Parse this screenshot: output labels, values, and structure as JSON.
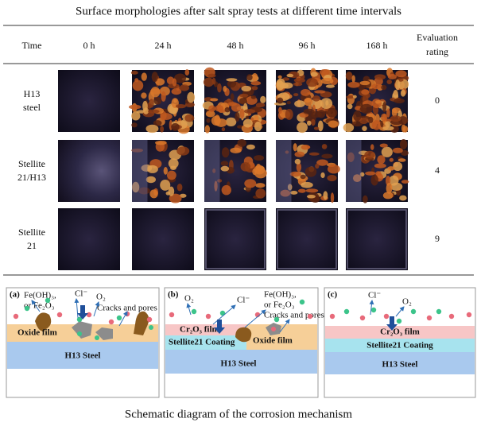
{
  "title": "Surface morphologies after salt spray tests at different time intervals",
  "table": {
    "time": "Time",
    "columns": [
      "0 h",
      "24 h",
      "48 h",
      "96 h",
      "168 h"
    ],
    "rating": [
      "Evaluation",
      "rating"
    ],
    "rows": [
      {
        "label": [
          "H13",
          "steel"
        ],
        "rating": 0
      },
      {
        "label": [
          "Stellite",
          "21/H13"
        ],
        "rating": 4
      },
      {
        "label": [
          "Stellite",
          "21"
        ],
        "rating": 9
      }
    ]
  },
  "schematic": {
    "a": {
      "tag": "(a)",
      "product": [
        "Fe(OH)₃,",
        "or Fe₂O₃"
      ],
      "cl": "Cl⁻",
      "o2": "O₂",
      "defects": "Cracks and pores",
      "oxide": "Oxide film",
      "steel": "H13 Steel"
    },
    "b": {
      "tag": "(b)",
      "o2": "O₂",
      "cl": "Cl⁻",
      "product": [
        "Fe(OH)₃,",
        "or Fe₂O₃"
      ],
      "defects": "Cracks and pores",
      "cr": "Cr₂O₃ film",
      "coating": "Stellite21 Coating",
      "oxide": "Oxide film",
      "steel": "H13 Steel"
    },
    "c": {
      "tag": "(c)",
      "cl": "Cl⁻",
      "o2": "O₂",
      "cr": "Cr₂O₃ film",
      "coating": "Stellite21 Coating",
      "steel": "H13 Steel"
    }
  },
  "caption": "Schematic diagram of the corrosion mechanism"
}
